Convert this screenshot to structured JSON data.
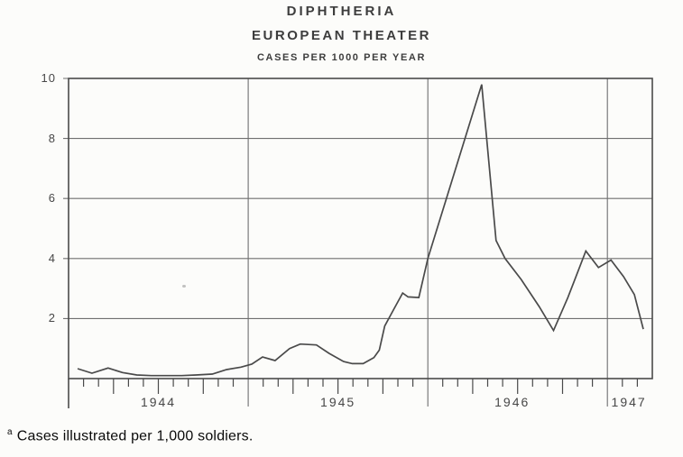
{
  "header": {
    "title": "DIPHTHERIA",
    "subtitle": "EUROPEAN THEATER",
    "caption": "CASES PER 1000 PER YEAR"
  },
  "footnote": {
    "marker": "a",
    "text": "Cases illustrated per 1,000 soldiers."
  },
  "chart_data": {
    "type": "line",
    "title": "DIPHTHERIA",
    "subtitle": "EUROPEAN THEATER",
    "units_label": "CASES PER 1000 PER YEAR",
    "xlabel": "",
    "ylabel": "",
    "x_range": [
      1944,
      1947.25
    ],
    "y_range": [
      0,
      10
    ],
    "y_ticks": [
      2,
      4,
      6,
      8,
      10
    ],
    "year_gridlines": [
      1945,
      1946,
      1947
    ],
    "x_tick_labels": [
      {
        "label": "1944",
        "x": 1944.5
      },
      {
        "label": "1945",
        "x": 1945.5
      },
      {
        "label": "1946",
        "x": 1946.47
      },
      {
        "label": "1947",
        "x": 1947.12
      }
    ],
    "minor_ticks": "monthly, quarter ticks longer",
    "grid": true,
    "legend": "none",
    "colors": {
      "line": "#4a4a4a",
      "grid": "#6f6f6f",
      "border": "#4a4a4a",
      "text": "#3d3d3d",
      "paper": "#fcfcfa"
    },
    "series": [
      {
        "name": "Diphtheria cases per 1000 per year, European Theater",
        "points": [
          [
            1944.05,
            0.33
          ],
          [
            1944.13,
            0.18
          ],
          [
            1944.22,
            0.35
          ],
          [
            1944.3,
            0.2
          ],
          [
            1944.38,
            0.12
          ],
          [
            1944.46,
            0.1
          ],
          [
            1944.55,
            0.1
          ],
          [
            1944.63,
            0.1
          ],
          [
            1944.71,
            0.12
          ],
          [
            1944.8,
            0.15
          ],
          [
            1944.88,
            0.3
          ],
          [
            1944.96,
            0.38
          ],
          [
            1945.02,
            0.48
          ],
          [
            1945.08,
            0.72
          ],
          [
            1945.15,
            0.6
          ],
          [
            1945.23,
            1.0
          ],
          [
            1945.29,
            1.15
          ],
          [
            1945.38,
            1.12
          ],
          [
            1945.45,
            0.84
          ],
          [
            1945.53,
            0.57
          ],
          [
            1945.58,
            0.5
          ],
          [
            1945.64,
            0.5
          ],
          [
            1945.7,
            0.7
          ],
          [
            1945.73,
            0.95
          ],
          [
            1945.76,
            1.75
          ],
          [
            1945.81,
            2.3
          ],
          [
            1945.86,
            2.85
          ],
          [
            1945.89,
            2.72
          ],
          [
            1945.95,
            2.7
          ],
          [
            1946.0,
            4.0
          ],
          [
            1946.3,
            9.8
          ],
          [
            1946.38,
            4.6
          ],
          [
            1946.43,
            4.0
          ],
          [
            1946.52,
            3.3
          ],
          [
            1946.62,
            2.4
          ],
          [
            1946.7,
            1.6
          ],
          [
            1946.78,
            2.7
          ],
          [
            1946.88,
            4.25
          ],
          [
            1946.95,
            3.7
          ],
          [
            1947.02,
            3.95
          ],
          [
            1947.09,
            3.4
          ],
          [
            1947.15,
            2.8
          ],
          [
            1947.2,
            1.65
          ]
        ]
      }
    ]
  }
}
